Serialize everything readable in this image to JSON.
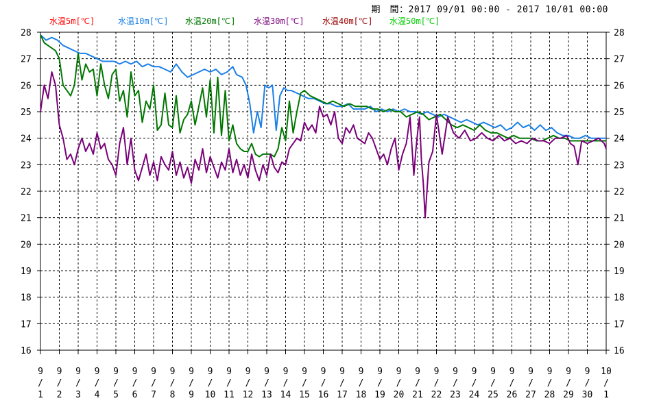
{
  "period": {
    "label": "期　間：",
    "range": "2017 09/01 00:00 - 2017 10/01 00:00"
  },
  "chart_data": {
    "type": "line",
    "title": "",
    "xlabel": "",
    "ylabel": "",
    "ylim": [
      16,
      28
    ],
    "yticks": [
      16,
      17,
      18,
      19,
      20,
      21,
      22,
      23,
      24,
      25,
      26,
      27,
      28
    ],
    "x_tick_labels": [
      [
        "9",
        "1"
      ],
      [
        "9",
        "2"
      ],
      [
        "9",
        "3"
      ],
      [
        "9",
        "4"
      ],
      [
        "9",
        "5"
      ],
      [
        "9",
        "6"
      ],
      [
        "9",
        "7"
      ],
      [
        "9",
        "8"
      ],
      [
        "9",
        "9"
      ],
      [
        "9",
        "10"
      ],
      [
        "9",
        "11"
      ],
      [
        "9",
        "12"
      ],
      [
        "9",
        "13"
      ],
      [
        "9",
        "14"
      ],
      [
        "9",
        "15"
      ],
      [
        "9",
        "16"
      ],
      [
        "9",
        "17"
      ],
      [
        "9",
        "18"
      ],
      [
        "9",
        "19"
      ],
      [
        "9",
        "20"
      ],
      [
        "9",
        "21"
      ],
      [
        "9",
        "22"
      ],
      [
        "9",
        "23"
      ],
      [
        "9",
        "24"
      ],
      [
        "9",
        "25"
      ],
      [
        "9",
        "26"
      ],
      [
        "9",
        "27"
      ],
      [
        "9",
        "28"
      ],
      [
        "9",
        "29"
      ],
      [
        "9",
        "30"
      ],
      [
        "10",
        "1"
      ]
    ],
    "x_tick_separator": "/",
    "xlim_days": [
      0,
      30
    ],
    "grid": true,
    "legend_placement": "top-left",
    "series": [
      {
        "name": "水温5m[℃]",
        "color": "#ff0000",
        "x": [],
        "y": []
      },
      {
        "name": "水温10m[℃]",
        "color": "#1a7fe6",
        "x": [
          0,
          0.3,
          0.6,
          0.9,
          1.2,
          1.5,
          1.8,
          2.1,
          2.4,
          2.7,
          3.0,
          3.3,
          3.6,
          3.9,
          4.2,
          4.5,
          4.8,
          5.1,
          5.4,
          5.7,
          6.0,
          6.3,
          6.6,
          6.9,
          7.2,
          7.5,
          7.8,
          8.1,
          8.4,
          8.7,
          9.0,
          9.3,
          9.6,
          9.9,
          10.2,
          10.4,
          10.7,
          10.9,
          11.1,
          11.3,
          11.5,
          11.7,
          11.9,
          12.1,
          12.3,
          12.5,
          12.7,
          12.9,
          13.1,
          13.3,
          13.6,
          13.9,
          14.2,
          14.5,
          14.8,
          15.1,
          15.4,
          15.7,
          16.0,
          16.3,
          16.6,
          16.9,
          17.2,
          17.5,
          17.8,
          18.1,
          18.4,
          18.7,
          19.0,
          19.3,
          19.6,
          19.9,
          20.2,
          20.5,
          20.8,
          21.1,
          21.4,
          21.7,
          22.0,
          22.3,
          22.6,
          22.9,
          23.2,
          23.5,
          23.8,
          24.1,
          24.4,
          24.7,
          25.0,
          25.3,
          25.6,
          25.9,
          26.2,
          26.5,
          26.8,
          27.1,
          27.4,
          27.7,
          28.0,
          28.3,
          28.6,
          28.9,
          29.2,
          29.5,
          29.8,
          30.0
        ],
        "y": [
          27.9,
          27.7,
          27.8,
          27.7,
          27.5,
          27.4,
          27.3,
          27.2,
          27.2,
          27.1,
          27.0,
          26.9,
          26.9,
          26.9,
          26.8,
          26.9,
          26.8,
          26.9,
          26.7,
          26.8,
          26.7,
          26.7,
          26.6,
          26.5,
          26.8,
          26.5,
          26.3,
          26.4,
          26.5,
          26.6,
          26.5,
          26.6,
          26.4,
          26.5,
          26.7,
          26.4,
          26.3,
          26.0,
          25.3,
          24.2,
          25.0,
          24.4,
          26.0,
          25.9,
          26.0,
          24.3,
          25.6,
          25.9,
          25.8,
          25.8,
          25.7,
          25.6,
          25.5,
          25.5,
          25.4,
          25.3,
          25.3,
          25.2,
          25.2,
          25.3,
          25.1,
          25.1,
          25.1,
          25.2,
          25.0,
          25.1,
          25.0,
          25.1,
          25.0,
          25.1,
          25.0,
          25.0,
          24.9,
          25.0,
          24.9,
          24.8,
          24.9,
          24.8,
          24.7,
          24.6,
          24.7,
          24.6,
          24.5,
          24.6,
          24.5,
          24.4,
          24.5,
          24.3,
          24.4,
          24.6,
          24.4,
          24.5,
          24.3,
          24.5,
          24.3,
          24.4,
          24.2,
          24.1,
          24.1,
          24.0,
          24.0,
          24.1,
          24.0,
          24.0,
          24.0,
          24.0
        ]
      },
      {
        "name": "水温20m[℃]",
        "color": "#007700",
        "x": [
          0,
          0.2,
          0.4,
          0.6,
          0.8,
          1.0,
          1.2,
          1.4,
          1.6,
          1.8,
          2.0,
          2.2,
          2.4,
          2.6,
          2.8,
          3.0,
          3.2,
          3.4,
          3.6,
          3.8,
          4.0,
          4.2,
          4.4,
          4.6,
          4.8,
          5.0,
          5.2,
          5.4,
          5.6,
          5.8,
          6.0,
          6.2,
          6.4,
          6.6,
          6.8,
          7.0,
          7.2,
          7.4,
          7.6,
          7.8,
          8.0,
          8.2,
          8.4,
          8.6,
          8.8,
          9.0,
          9.2,
          9.4,
          9.6,
          9.8,
          10.0,
          10.2,
          10.4,
          10.6,
          10.8,
          11.0,
          11.2,
          11.4,
          11.6,
          11.8,
          12.0,
          12.2,
          12.4,
          12.6,
          12.8,
          13.0,
          13.2,
          13.4,
          13.6,
          13.8,
          14.0,
          14.3,
          14.6,
          14.9,
          15.2,
          15.5,
          15.8,
          16.1,
          16.4,
          16.7,
          17.0,
          17.3,
          17.6,
          17.9,
          18.2,
          18.5,
          18.8,
          19.1,
          19.4,
          19.7,
          20.0,
          20.3,
          20.6,
          20.9,
          21.2,
          21.5,
          21.8,
          22.1,
          22.4,
          22.7,
          23.0,
          23.3,
          23.6,
          23.9,
          24.2,
          24.5,
          24.8,
          25.1,
          25.4,
          25.7,
          26.0,
          26.3,
          26.6,
          26.9,
          27.2,
          27.5,
          27.8,
          28.1,
          28.4,
          28.7,
          29.0,
          29.3,
          29.6,
          30.0
        ],
        "y": [
          27.9,
          27.6,
          27.5,
          27.4,
          27.3,
          27.0,
          26.0,
          25.8,
          25.6,
          26.0,
          27.2,
          26.2,
          26.8,
          26.5,
          26.6,
          25.6,
          26.8,
          26.0,
          25.5,
          26.4,
          26.6,
          25.4,
          25.8,
          24.8,
          26.5,
          25.6,
          25.8,
          24.6,
          25.4,
          25.1,
          26.0,
          24.3,
          24.5,
          25.7,
          24.5,
          24.4,
          25.6,
          24.2,
          24.7,
          24.9,
          25.4,
          24.5,
          25.2,
          25.9,
          24.8,
          26.2,
          24.2,
          26.3,
          24.1,
          25.8,
          23.9,
          24.5,
          23.8,
          23.6,
          23.5,
          23.5,
          23.8,
          23.4,
          23.3,
          23.4,
          23.4,
          23.4,
          23.3,
          23.6,
          24.4,
          23.9,
          25.4,
          24.2,
          25.0,
          25.7,
          25.8,
          25.6,
          25.5,
          25.4,
          25.3,
          25.4,
          25.3,
          25.2,
          25.3,
          25.2,
          25.2,
          25.2,
          25.1,
          25.1,
          25.0,
          25.1,
          25.0,
          25.0,
          24.8,
          24.9,
          25.0,
          24.9,
          24.7,
          24.8,
          24.9,
          24.7,
          24.5,
          24.4,
          24.5,
          24.4,
          24.3,
          24.5,
          24.3,
          24.2,
          24.2,
          24.1,
          24.0,
          24.1,
          24.0,
          24.0,
          24.0,
          23.9,
          23.9,
          24.0,
          24.1,
          24.0,
          24.0,
          23.9,
          23.9,
          23.9,
          23.9,
          23.9,
          23.9,
          23.9
        ]
      },
      {
        "name": "水温30m[℃]",
        "color": "#7a007a",
        "x": [
          0,
          0.2,
          0.4,
          0.6,
          0.8,
          1.0,
          1.2,
          1.4,
          1.6,
          1.8,
          2.0,
          2.2,
          2.4,
          2.6,
          2.8,
          3.0,
          3.2,
          3.4,
          3.6,
          3.8,
          4.0,
          4.2,
          4.4,
          4.6,
          4.8,
          5.0,
          5.2,
          5.4,
          5.6,
          5.8,
          6.0,
          6.2,
          6.4,
          6.6,
          6.8,
          7.0,
          7.2,
          7.4,
          7.6,
          7.8,
          8.0,
          8.2,
          8.4,
          8.6,
          8.8,
          9.0,
          9.2,
          9.4,
          9.6,
          9.8,
          10.0,
          10.2,
          10.4,
          10.6,
          10.8,
          11.0,
          11.2,
          11.4,
          11.6,
          11.8,
          12.0,
          12.2,
          12.4,
          12.6,
          12.8,
          13.0,
          13.2,
          13.4,
          13.6,
          13.8,
          14.0,
          14.2,
          14.4,
          14.6,
          14.8,
          15.0,
          15.2,
          15.4,
          15.6,
          15.8,
          16.0,
          16.2,
          16.4,
          16.6,
          16.8,
          17.0,
          17.2,
          17.4,
          17.6,
          17.8,
          18.0,
          18.2,
          18.4,
          18.6,
          18.8,
          19.0,
          19.2,
          19.4,
          19.6,
          19.8,
          19.9,
          20.0,
          20.1,
          20.2,
          20.3,
          20.4,
          20.6,
          20.8,
          21.0,
          21.3,
          21.6,
          21.9,
          22.2,
          22.5,
          22.8,
          23.1,
          23.4,
          23.7,
          24.0,
          24.3,
          24.6,
          24.9,
          25.2,
          25.5,
          25.8,
          26.1,
          26.4,
          26.7,
          27.0,
          27.3,
          27.6,
          27.9,
          28.1,
          28.3,
          28.5,
          28.7,
          29.0,
          29.3,
          29.6,
          29.9,
          30.0
        ],
        "y": [
          25.0,
          26.0,
          25.5,
          26.5,
          26.0,
          24.5,
          24.0,
          23.2,
          23.4,
          23.0,
          23.6,
          24.0,
          23.5,
          23.8,
          23.4,
          24.2,
          23.6,
          23.8,
          23.2,
          23.0,
          22.6,
          23.8,
          24.4,
          23.0,
          24.0,
          22.8,
          22.4,
          22.9,
          23.4,
          22.6,
          23.1,
          22.4,
          23.3,
          23.0,
          22.8,
          23.5,
          22.6,
          23.1,
          22.5,
          22.9,
          22.3,
          23.2,
          22.8,
          23.6,
          22.7,
          23.3,
          22.9,
          22.5,
          23.1,
          22.8,
          23.6,
          22.7,
          23.2,
          22.6,
          23.0,
          22.5,
          23.4,
          22.8,
          22.4,
          23.0,
          22.6,
          23.4,
          22.9,
          22.7,
          23.1,
          23.0,
          23.6,
          23.8,
          24.0,
          23.9,
          24.6,
          24.3,
          24.5,
          24.2,
          25.2,
          24.8,
          24.9,
          24.5,
          25.0,
          24.0,
          23.8,
          24.4,
          24.2,
          24.5,
          24.0,
          23.9,
          23.8,
          24.2,
          24.0,
          23.6,
          23.2,
          23.4,
          23.0,
          23.6,
          24.0,
          22.8,
          23.4,
          23.8,
          24.8,
          22.6,
          23.5,
          24.2,
          24.8,
          23.2,
          22.3,
          21.0,
          23.1,
          23.5,
          24.9,
          23.4,
          24.8,
          24.2,
          24.0,
          24.3,
          23.9,
          24.0,
          24.2,
          24.0,
          23.9,
          24.1,
          23.9,
          24.0,
          23.8,
          23.9,
          23.8,
          24.0,
          23.9,
          23.9,
          23.8,
          24.0,
          24.0,
          24.1,
          23.8,
          23.7,
          23.0,
          23.9,
          23.8,
          23.9,
          24.0,
          23.8,
          23.6
        ]
      },
      {
        "name": "水温40m[℃]",
        "color": "#990000",
        "x": [],
        "y": []
      },
      {
        "name": "水温50m[℃]",
        "color": "#00cc00",
        "x": [],
        "y": []
      }
    ]
  }
}
